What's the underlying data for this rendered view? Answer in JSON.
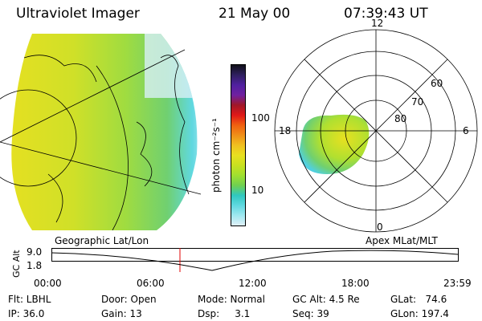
{
  "header": {
    "title": "Ultraviolet Imager",
    "date": "21 May 00",
    "time": "07:39:43 UT"
  },
  "colorbar": {
    "unit_label": "photon cm⁻²s⁻¹",
    "ticks": [
      "100",
      "10"
    ],
    "colors": [
      "#101018",
      "#302060",
      "#5020a0",
      "#7020a0",
      "#a01828",
      "#e01818",
      "#f06010",
      "#f09018",
      "#f0c020",
      "#e8e020",
      "#c8e020",
      "#a0e030",
      "#70d050",
      "#30c8c0",
      "#60d8e0",
      "#a0e8f0",
      "#e0f0f8"
    ]
  },
  "left_map": {
    "label": "Geographic Lat/Lon"
  },
  "polar_map": {
    "label": "Apex MLat/MLT",
    "mlt_labels": {
      "top": "12",
      "left": "18",
      "right": "6",
      "bottom": "0"
    },
    "lat_labels": [
      "60",
      "70",
      "80"
    ]
  },
  "altitude_plot": {
    "ylabel": "GC Alt",
    "yticks": [
      "9.0",
      "1.8"
    ],
    "xticks": [
      "00:00",
      "06:00",
      "12:00",
      "18:00",
      "23:59"
    ],
    "marker_time": "07:39"
  },
  "info": {
    "filter": "Flt: LBHL",
    "ip": "IP: 36.0",
    "door": "Door: Open",
    "gain": "Gain: 13",
    "mode": "Mode: Normal",
    "dsp": "Dsp:     3.1",
    "gc_alt": "GC Alt: 4.5 Re",
    "seq": "Seq: 39",
    "glat": "GLat:   74.6",
    "glon": "GLon: 197.4"
  }
}
